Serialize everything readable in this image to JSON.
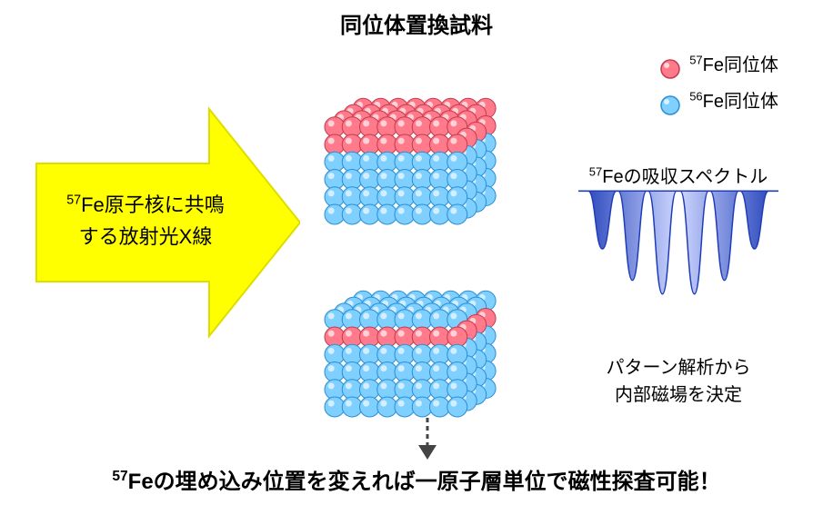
{
  "title_top": "同位体置換試料",
  "arrow": {
    "fill": "#ffff00",
    "stroke": "#dddd00",
    "label_line1_sup": "57",
    "label_line1": "Fe原子核に共鳴",
    "label_line2": "する放射光X線"
  },
  "cube": {
    "cols": 8,
    "rows_front": 6,
    "depth_rows": 4,
    "sphere_radius": 11,
    "colors": {
      "fe57_fill": "#ff7a8a",
      "fe57_stroke": "#c23b4f",
      "fe56_fill": "#7fcfff",
      "fe56_stroke": "#2a8fd3",
      "highlight": "#ffffff"
    },
    "cube1_red_top_depth_rows": 2,
    "cube2_red_front_row_index": 1
  },
  "legend": {
    "fe57_sup": "57",
    "fe57_text": "Fe同位体",
    "fe56_sup": "56",
    "fe56_text": "Fe同位体"
  },
  "spectrum": {
    "title_sup": "57",
    "title": "Feの吸収スペクトル",
    "fill_start": "#cfd8ff",
    "fill_end": "#1f3db8",
    "stroke": "#1f3db8",
    "baseline_y": 0.08,
    "peaks_x": [
      0.12,
      0.27,
      0.42,
      0.58,
      0.73,
      0.88
    ],
    "peaks_depth": [
      0.55,
      0.85,
      0.98,
      0.98,
      0.85,
      0.55
    ],
    "peak_halfwidth": 0.035
  },
  "pattern_text_line1": "パターン解析から",
  "pattern_text_line2": "内部磁場を決定",
  "down_arrow_color": "#444444",
  "bottom_text_sup": "57",
  "bottom_text": "Feの埋め込み位置を変えれば一原子層単位で磁性探査可能！"
}
